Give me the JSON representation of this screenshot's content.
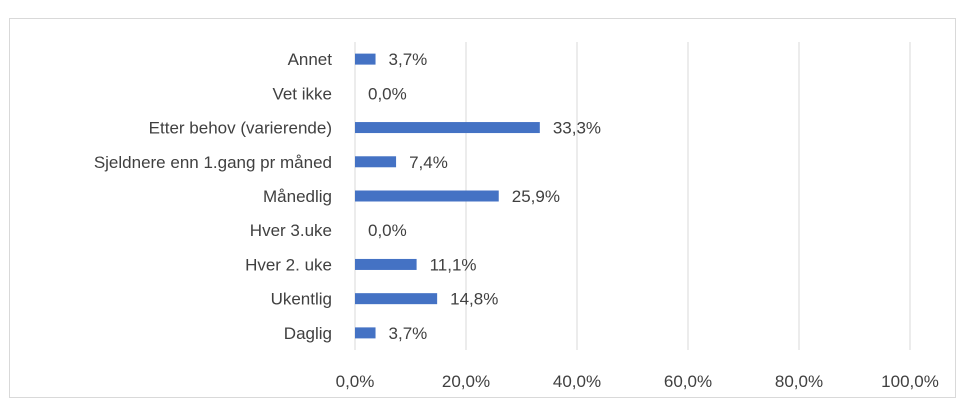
{
  "chart_data": {
    "type": "bar",
    "orientation": "horizontal",
    "categories": [
      "Annet",
      "Vet ikke",
      "Etter behov (varierende)",
      "Sjeldnere enn 1.gang pr måned",
      "Månedlig",
      "Hver 3.uke",
      "Hver 2. uke",
      "Ukentlig",
      "Daglig"
    ],
    "values": [
      3.7,
      0.0,
      33.3,
      7.4,
      25.9,
      0.0,
      11.1,
      14.8,
      3.7
    ],
    "value_labels": [
      "3,7%",
      "0,0%",
      "33,3%",
      "7,4%",
      "25,9%",
      "0,0%",
      "11,1%",
      "14,8%",
      "3,7%"
    ],
    "x_ticks": [
      "0,0%",
      "20,0%",
      "40,0%",
      "60,0%",
      "80,0%",
      "100,0%"
    ],
    "xlim": [
      0,
      100
    ],
    "grid": true,
    "colors": {
      "bar": "#4472c4",
      "grid": "#d9d9d9",
      "text": "#404040"
    }
  }
}
